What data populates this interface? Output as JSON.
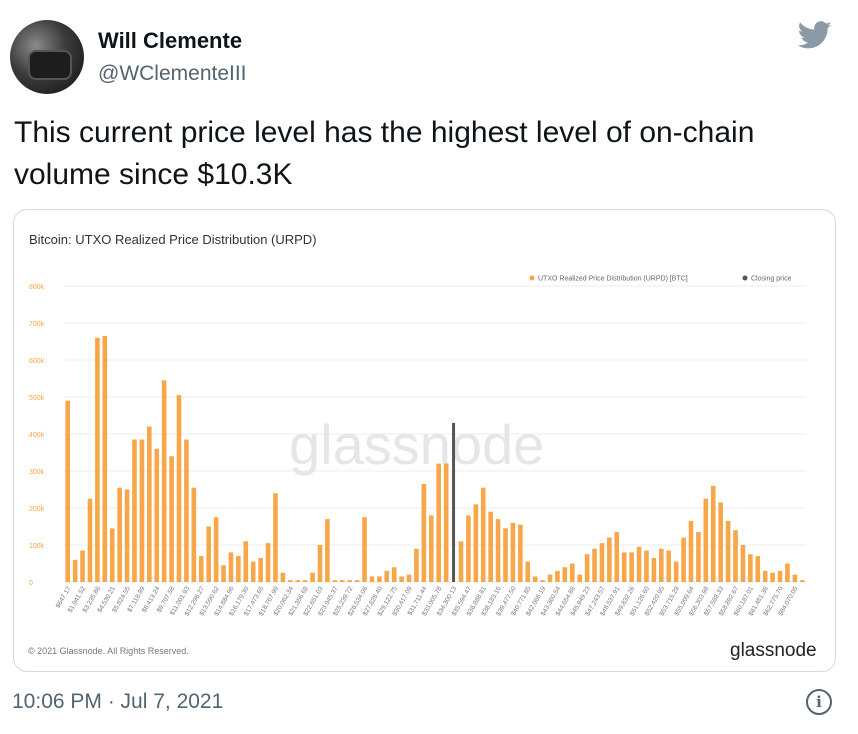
{
  "tweet": {
    "author_name": "Will Clemente",
    "author_handle": "@WClementeIII",
    "text": "This current price level has the highest level of on-chain volume since $10.3K",
    "timestamp": "10:06 PM · Jul 7, 2021",
    "icons": {
      "platform": "twitter-bird-icon",
      "info": "info-icon"
    },
    "colors": {
      "bird": "#8a9aa6",
      "meta": "#536471"
    }
  },
  "card": {
    "copyright": "© 2021 Glassnode. All Rights Reserved.",
    "brand": "glassnode",
    "watermark": "glassnode"
  },
  "chart_data": {
    "type": "bar",
    "title": "Bitcoin: UTXO Realized Price Distribution (URPD)",
    "ylim": [
      0,
      800000
    ],
    "yticks": [
      "0",
      "100k",
      "200k",
      "300k",
      "400k",
      "500k",
      "600k",
      "700k",
      "800k"
    ],
    "grid": true,
    "legend_position": "top-right",
    "series": [
      {
        "name": "UTXO Realized Price Distribution (URPD) [BTC]",
        "color": "#f7a64a",
        "values": [
          490000,
          60000,
          85000,
          225000,
          660000,
          665000,
          145000,
          255000,
          250000,
          385000,
          385000,
          420000,
          360000,
          545000,
          340000,
          505000,
          385000,
          255000,
          70000,
          150000,
          175000,
          45000,
          80000,
          70000,
          110000,
          55000,
          65000,
          105000,
          240000,
          25000,
          5000,
          5000,
          5000,
          25000,
          100000,
          170000,
          5000,
          5000,
          5000,
          5000,
          175000,
          15000,
          15000,
          30000,
          40000,
          15000,
          20000,
          90000,
          265000,
          180000,
          320000,
          320000,
          0,
          110000,
          180000,
          210000,
          255000,
          190000,
          170000,
          145000,
          160000,
          155000,
          55000,
          15000,
          5000,
          20000,
          30000,
          40000,
          50000,
          20000,
          75000,
          90000,
          105000,
          120000,
          135000,
          80000,
          80000,
          95000,
          85000,
          65000,
          90000,
          85000,
          55000,
          120000,
          165000,
          135000,
          225000,
          260000,
          215000,
          165000,
          140000,
          100000,
          75000,
          70000,
          30000,
          25000,
          30000,
          50000,
          20000,
          5000
        ]
      },
      {
        "name": "Closing price",
        "color": "#555555",
        "bar_index": 52,
        "value": 430000
      }
    ],
    "x_tick_labels": [
      "$647.17",
      "$1,941.52",
      "$3,235.86",
      "$4,530.21",
      "$5,824.55",
      "$7,118.89",
      "$8,413.24",
      "$9,707.58",
      "$11,001.93",
      "$12,296.27",
      "$13,590.62",
      "$14,884.96",
      "$16,179.30",
      "$17,473.65",
      "$18,767.99",
      "$20,062.34",
      "$21,356.68",
      "$22,651.03",
      "$23,945.37",
      "$25,239.72",
      "$26,534.06",
      "$27,828.40",
      "$29,122.75",
      "$30,417.09",
      "$31,711.44",
      "$33,005.78",
      "$34,300.13",
      "$35,594.47",
      "$36,888.81",
      "$38,183.16",
      "$39,477.50",
      "$40,771.85",
      "$42,066.19",
      "$43,360.54",
      "$44,654.88",
      "$45,949.23",
      "$47,243.57",
      "$48,537.91",
      "$49,832.26",
      "$51,126.60",
      "$52,420.95",
      "$53,715.29",
      "$55,009.64",
      "$56,303.98",
      "$57,598.33",
      "$58,892.67",
      "$60,187.01",
      "$61,481.36",
      "$62,775.70",
      "$64,070.05"
    ]
  }
}
